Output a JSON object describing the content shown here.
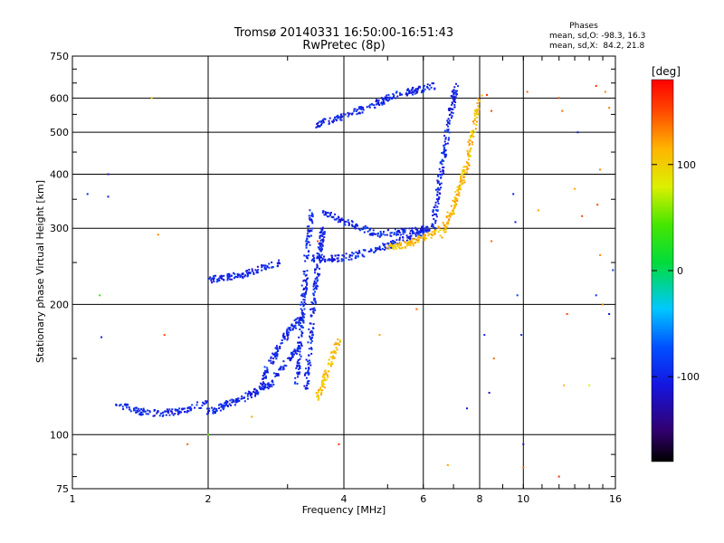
{
  "chart_data": {
    "type": "scatter",
    "title": "Tromsø 20140331 16:50:00-16:51:43",
    "subtitle": "RwPretec (8p)",
    "xlabel": "Frequency [MHz]",
    "ylabel": "Stationary phase Virtual Height [km]",
    "x_scale": "log",
    "y_scale": "log",
    "xlim": [
      1,
      16
    ],
    "ylim": [
      75,
      750
    ],
    "x_ticks": [
      1,
      2,
      4,
      6,
      8,
      10,
      16
    ],
    "x_tick_labels": [
      "1",
      "2",
      "4",
      "6",
      "8",
      "10",
      "16"
    ],
    "y_ticks": [
      75,
      100,
      200,
      300,
      400,
      500,
      600,
      750
    ],
    "y_tick_labels": [
      "75",
      "100",
      "200",
      "300",
      "400",
      "500",
      "600",
      "750"
    ],
    "grid": true,
    "stats": {
      "heading": "Phases",
      "line_o": "mean, sd,O: -98.3, 16.3",
      "line_x": "mean, sd,X:  84.2, 21.8"
    },
    "colorbar": {
      "label": "[deg]",
      "range": [
        -180,
        180
      ],
      "ticks": [
        100,
        0,
        -100
      ],
      "tick_labels": [
        "100",
        "0",
        "-100"
      ]
    },
    "series": [
      {
        "name": "O",
        "phase": -100,
        "traces": [
          {
            "fstart": 1.25,
            "fend": 2.0,
            "h": [
              118,
              113,
              112,
              114,
              119
            ]
          },
          {
            "fstart": 2.0,
            "fend": 3.2,
            "h": [
              113,
              120,
              130,
              160
            ]
          },
          {
            "fstart": 2.6,
            "fend": 3.2,
            "h": [
              130,
              150,
              170,
              185
            ]
          },
          {
            "fstart": 3.15,
            "fend": 3.3,
            "h": [
              130,
              240
            ]
          },
          {
            "fstart": 3.3,
            "fend": 3.6,
            "h": [
              125,
              300
            ]
          },
          {
            "fstart": 2.0,
            "fend": 2.9,
            "h": [
              228,
              235,
              250
            ]
          },
          {
            "fstart": 3.3,
            "fend": 3.4,
            "h": [
              255,
              325
            ]
          },
          {
            "fstart": 3.4,
            "fend": 6.2,
            "h": [
              255,
              256,
              265,
              280,
              300
            ]
          },
          {
            "fstart": 3.6,
            "fend": 6.2,
            "h": [
              325,
              290,
              300
            ]
          },
          {
            "fstart": 3.5,
            "fend": 6.4,
            "h": [
              520,
              560,
              610,
              640
            ]
          },
          {
            "fstart": 6.3,
            "fend": 7.1,
            "h": [
              300,
              450,
              640
            ]
          }
        ]
      },
      {
        "name": "X",
        "phase": 110,
        "traces": [
          {
            "fstart": 3.5,
            "fend": 3.9,
            "h": [
              122,
              135,
              150,
              165
            ]
          },
          {
            "fstart": 5.0,
            "fend": 6.6,
            "h": [
              270,
              275,
              285,
              300
            ]
          },
          {
            "fstart": 6.6,
            "fend": 8.0,
            "h": [
              290,
              340,
              420,
              600
            ]
          }
        ]
      },
      {
        "name": "Noise",
        "phase": "varies",
        "points": [
          [
            1.2,
            400,
            -120
          ],
          [
            1.2,
            355,
            -110
          ],
          [
            1.08,
            360,
            -100
          ],
          [
            1.16,
            168,
            -110
          ],
          [
            1.15,
            210,
            40
          ],
          [
            1.55,
            290,
            130
          ],
          [
            1.6,
            170,
            150
          ],
          [
            1.8,
            95,
            140
          ],
          [
            1.5,
            600,
            110
          ],
          [
            2.0,
            100,
            50
          ],
          [
            2.5,
            110,
            120
          ],
          [
            3.5,
            280,
            150
          ],
          [
            3.9,
            95,
            160
          ],
          [
            4.8,
            170,
            120
          ],
          [
            5.8,
            195,
            140
          ],
          [
            6.8,
            85,
            120
          ],
          [
            7.5,
            115,
            -110
          ],
          [
            8.2,
            170,
            -100
          ],
          [
            8.4,
            125,
            -120
          ],
          [
            8.6,
            150,
            140
          ],
          [
            8.5,
            560,
            150
          ],
          [
            8.3,
            610,
            160
          ],
          [
            8.5,
            280,
            140
          ],
          [
            9.5,
            360,
            -110
          ],
          [
            9.6,
            310,
            -110
          ],
          [
            9.7,
            210,
            -80
          ],
          [
            9.9,
            170,
            -100
          ],
          [
            10.0,
            95,
            -120
          ],
          [
            10.0,
            84,
            140
          ],
          [
            10.2,
            620,
            140
          ],
          [
            10.8,
            330,
            120
          ],
          [
            12.0,
            600,
            150
          ],
          [
            12.2,
            560,
            140
          ],
          [
            12.5,
            190,
            150
          ],
          [
            12.3,
            130,
            110
          ],
          [
            12.0,
            80,
            160
          ],
          [
            13.2,
            500,
            -110
          ],
          [
            13.0,
            370,
            120
          ],
          [
            13.5,
            320,
            150
          ],
          [
            14.5,
            210,
            -90
          ],
          [
            14.8,
            260,
            130
          ],
          [
            15.0,
            200,
            130
          ],
          [
            14.0,
            130,
            80
          ],
          [
            15.5,
            190,
            -110
          ],
          [
            15.5,
            570,
            130
          ],
          [
            15.8,
            240,
            -90
          ],
          [
            14.5,
            640,
            160
          ],
          [
            14.8,
            410,
            130
          ],
          [
            14.6,
            340,
            150
          ],
          [
            15.2,
            620,
            130
          ]
        ]
      }
    ]
  }
}
